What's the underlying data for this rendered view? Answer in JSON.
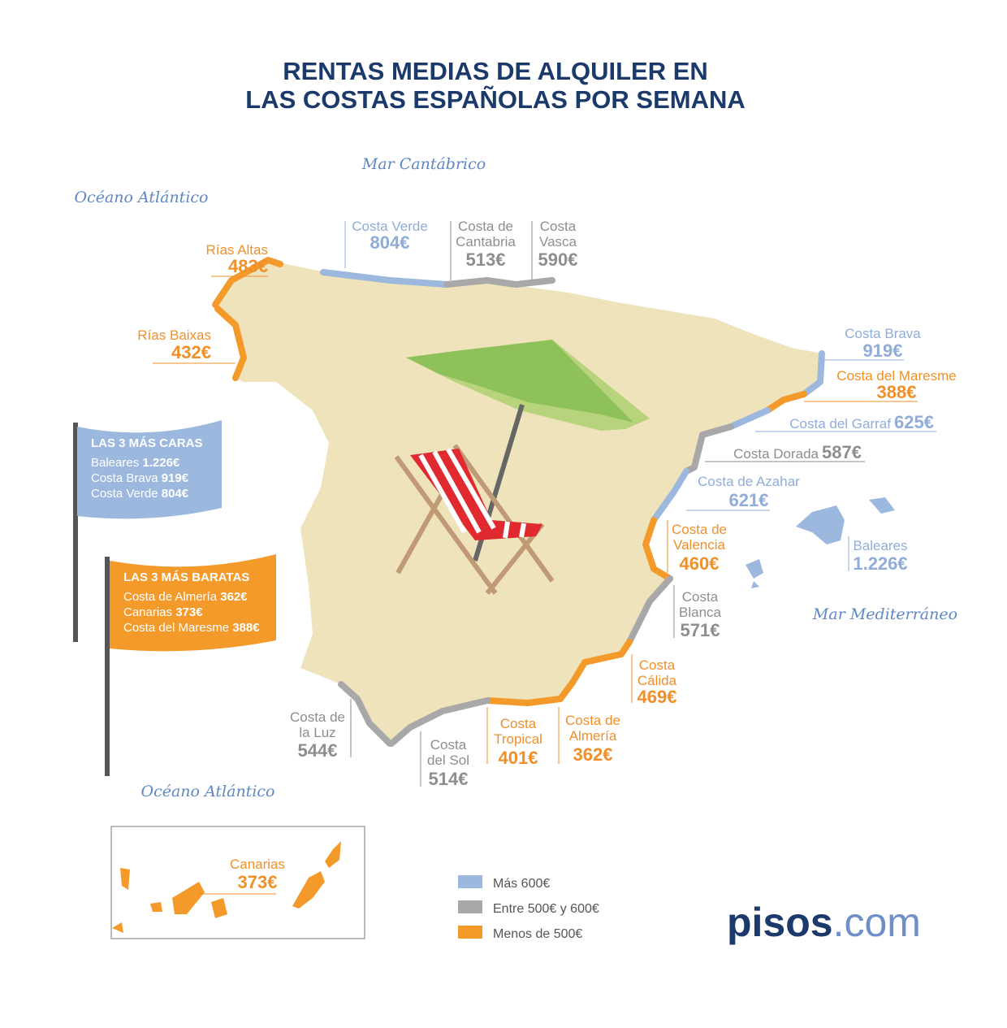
{
  "title": [
    "RENTAS MEDIAS DE ALQUILER EN",
    "LAS COSTAS ESPAÑOLAS POR SEMANA"
  ],
  "seas": [
    "Mar Cantábrico",
    "Océano Atlántico",
    "Mar Mediterráneo",
    "Océano Atlántico"
  ],
  "coasts": [
    {
      "name": [
        "Rías Altas"
      ],
      "price": "483€"
    },
    {
      "name": [
        "Rías Baixas"
      ],
      "price": "432€"
    },
    {
      "name": [
        "Costa Verde"
      ],
      "price": "804€"
    },
    {
      "name": [
        "Costa de",
        "Cantabria"
      ],
      "price": "513€"
    },
    {
      "name": [
        "Costa",
        "Vasca"
      ],
      "price": "590€"
    },
    {
      "name": [
        "Costa Brava"
      ],
      "price": "919€"
    },
    {
      "name": [
        "Costa del Maresme"
      ],
      "price": "388€"
    },
    {
      "name": [
        "Costa del Garraf"
      ],
      "price": "625€"
    },
    {
      "name": [
        "Costa Dorada"
      ],
      "price": "587€"
    },
    {
      "name": [
        "Costa de Azahar"
      ],
      "price": "621€"
    },
    {
      "name": [
        "Costa de",
        "Valencia"
      ],
      "price": "460€"
    },
    {
      "name": [
        "Costa",
        "Blanca"
      ],
      "price": "571€"
    },
    {
      "name": [
        "Costa",
        "Cálida"
      ],
      "price": "469€"
    },
    {
      "name": [
        "Costa de",
        "Almería"
      ],
      "price": "362€"
    },
    {
      "name": [
        "Costa",
        "Tropical"
      ],
      "price": "401€"
    },
    {
      "name": [
        "Costa",
        "del Sol"
      ],
      "price": "514€"
    },
    {
      "name": [
        "Costa de",
        "la Luz"
      ],
      "price": "544€"
    },
    {
      "name": [
        "Baleares"
      ],
      "price": "1.226€"
    },
    {
      "name": [
        "Canarias"
      ],
      "price": "373€"
    }
  ],
  "flags": [
    {
      "title": "LAS 3 MÁS CARAS",
      "items": [
        {
          "name": "Baleares",
          "price": "1.226€"
        },
        {
          "name": "Costa Brava",
          "price": "919€"
        },
        {
          "name": "Costa Verde",
          "price": "804€"
        }
      ]
    },
    {
      "title": "LAS 3 MÁS BARATAS",
      "items": [
        {
          "name": "Costa de Almería",
          "price": "362€"
        },
        {
          "name": "Canarias",
          "price": "373€"
        },
        {
          "name": "Costa del Maresme",
          "price": "388€"
        }
      ]
    }
  ],
  "legend": [
    "Más 600€",
    "Entre 500€ y 600€",
    "Menos de 500€"
  ],
  "logo": {
    "brand": "pisos",
    "suffix": ".com"
  }
}
